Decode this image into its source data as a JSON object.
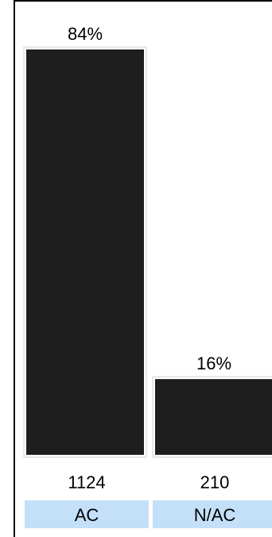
{
  "chart_data": {
    "type": "bar",
    "categories": [
      "AC",
      "N/AC"
    ],
    "values": [
      1124,
      210
    ],
    "percent_labels": [
      "84%",
      "16%"
    ],
    "count_labels": [
      "1124",
      "210"
    ],
    "ylim": [
      0,
      1124
    ],
    "title": "",
    "xlabel": "",
    "ylabel": "",
    "grid": false,
    "legend": "none",
    "colors": {
      "bar_fill": "#1e1e1e",
      "bar_border": "#d0d0d0",
      "category_background": "#c3e0f8",
      "frame": "#000000"
    }
  }
}
